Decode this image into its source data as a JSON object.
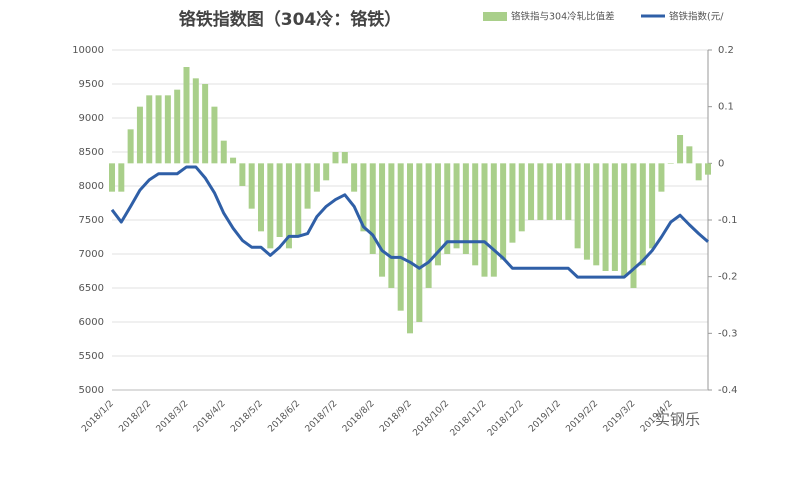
{
  "chart_data": {
    "type": "combo",
    "title": "铬铁指数图（304冷：铬铁）",
    "watermark": "实钢乐",
    "categories": [
      "2018/1/2",
      null,
      null,
      null,
      "2018/2/2",
      null,
      null,
      null,
      "2018/3/2",
      null,
      null,
      null,
      "2018/4/2",
      null,
      null,
      null,
      "2018/5/2",
      null,
      null,
      null,
      "2018/6/2",
      null,
      null,
      null,
      "2018/7/2",
      null,
      null,
      null,
      "2018/8/2",
      null,
      null,
      null,
      "2018/9/2",
      null,
      null,
      null,
      "2018/10/2",
      null,
      null,
      null,
      "2018/11/2",
      null,
      null,
      null,
      "2018/12/2",
      null,
      null,
      null,
      "2019/1/2",
      null,
      null,
      null,
      "2019/2/2",
      null,
      null,
      null,
      "2019/3/2",
      null,
      null,
      null,
      "2019/4/2",
      null,
      null,
      null,
      null
    ],
    "series": [
      {
        "name": "铬铁指与304冷轧比值差",
        "type": "bar",
        "axis": "y2",
        "color": "#a9cf8a",
        "values": [
          -0.05,
          -0.05,
          0.06,
          0.1,
          0.12,
          0.12,
          0.12,
          0.13,
          0.17,
          0.15,
          0.14,
          0.1,
          0.04,
          0.01,
          -0.04,
          -0.08,
          -0.12,
          -0.15,
          -0.13,
          -0.15,
          -0.13,
          -0.08,
          -0.05,
          -0.03,
          0.02,
          0.02,
          -0.05,
          -0.12,
          -0.16,
          -0.2,
          -0.22,
          -0.26,
          -0.3,
          -0.28,
          -0.22,
          -0.18,
          -0.16,
          -0.15,
          -0.16,
          -0.18,
          -0.2,
          -0.2,
          -0.17,
          -0.14,
          -0.12,
          -0.1,
          -0.1,
          -0.1,
          -0.1,
          -0.1,
          -0.15,
          -0.17,
          -0.18,
          -0.19,
          -0.19,
          -0.2,
          -0.22,
          -0.18,
          -0.15,
          -0.05,
          0.0,
          0.05,
          0.03,
          -0.03,
          -0.02
        ]
      },
      {
        "name": "铬铁指数(元/",
        "type": "line",
        "color": "#2f5fa7",
        "values": [
          7650,
          7470,
          7700,
          7940,
          8090,
          8180,
          8180,
          8180,
          8280,
          8280,
          8120,
          7900,
          7600,
          7380,
          7200,
          7100,
          7100,
          6980,
          7100,
          7260,
          7260,
          7300,
          7550,
          7700,
          7800,
          7870,
          7700,
          7400,
          7280,
          7050,
          6950,
          6950,
          6880,
          6790,
          6880,
          7030,
          7180,
          7180,
          7180,
          7180,
          7180,
          7060,
          6940,
          6790,
          6790,
          6790,
          6790,
          6790,
          6790,
          6790,
          6660,
          6660,
          6660,
          6660,
          6660,
          6660,
          6780,
          6900,
          7050,
          7250,
          7470,
          7570,
          7430,
          7300,
          7180
        ]
      }
    ],
    "ylim": [
      5000,
      10000
    ],
    "yticks": [
      5000,
      5500,
      6000,
      6500,
      7000,
      7500,
      8000,
      8500,
      9000,
      9500,
      10000
    ],
    "y2lim": [
      -0.4,
      0.2
    ],
    "y2ticks": [
      -0.4,
      -0.3,
      -0.2,
      -0.1,
      0,
      0.1,
      0.2
    ],
    "grid": true
  }
}
